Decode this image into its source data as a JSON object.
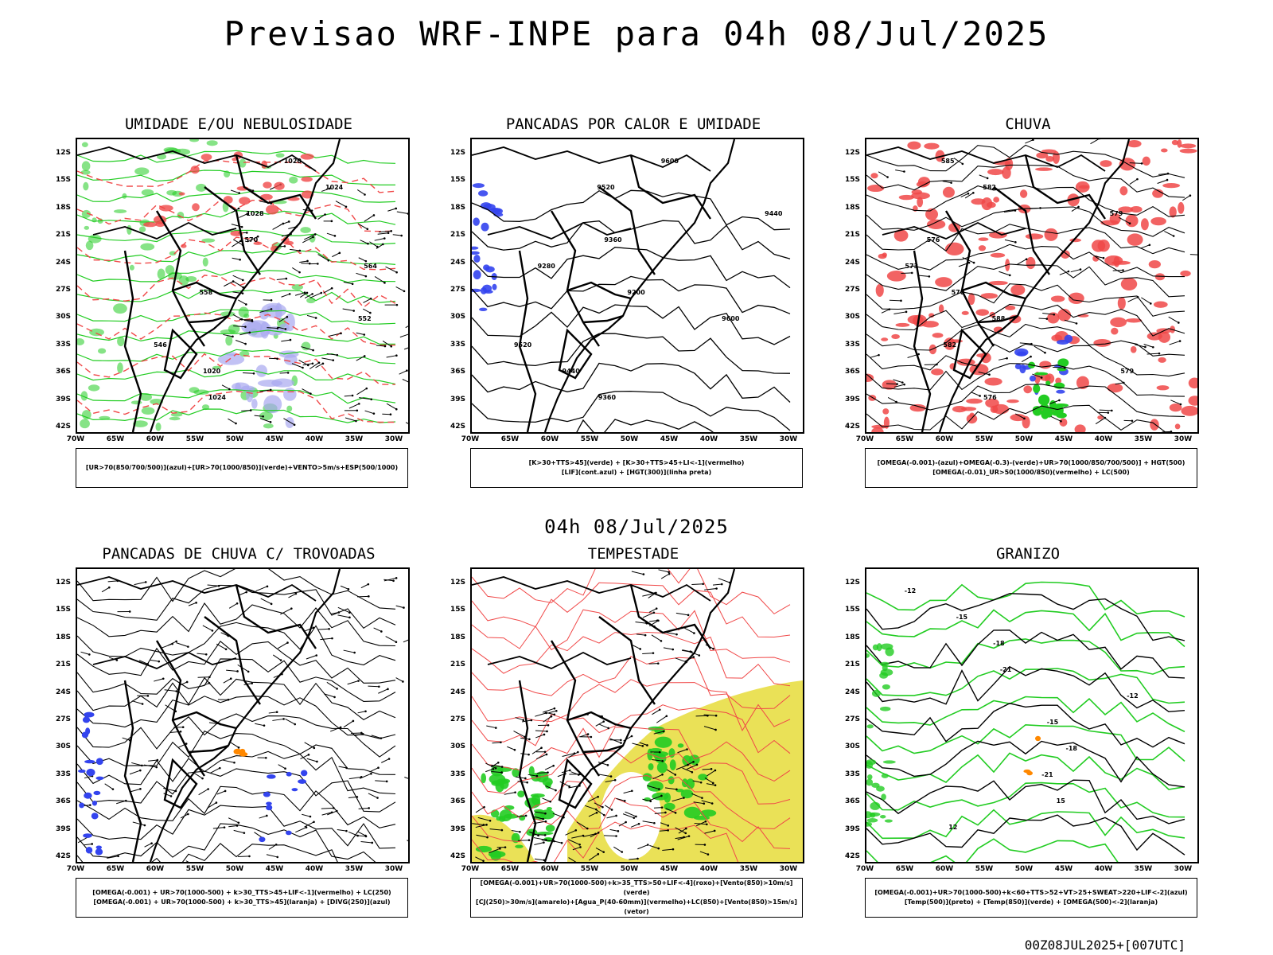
{
  "header": {
    "title": "Previsao WRF-INPE  para 04h 08/Jul/2025",
    "mid_title": "04h 08/Jul/2025",
    "footer": "00Z08JUL2025+[007UTC]"
  },
  "axes": {
    "lat_labels": [
      "12S",
      "15S",
      "18S",
      "21S",
      "24S",
      "27S",
      "30S",
      "33S",
      "36S",
      "39S",
      "42S"
    ],
    "lon_labels": [
      "70W",
      "65W",
      "60W",
      "55W",
      "50W",
      "45W",
      "40W",
      "35W",
      "30W"
    ]
  },
  "colors": {
    "red": "#f04848",
    "green": "#22cc22",
    "blue": "#3344ee",
    "lightblue": "#a8a8f0",
    "yellow": "#e6dc3a",
    "orange": "#ff8800",
    "black": "#000000"
  },
  "panels": [
    {
      "title": "UMIDADE E/OU NEBULOSIDADE",
      "legend_lines": [
        "[UR>70(850/700/500)](azul)+[UR>70(1000/850)](verde)+VENTO>5m/s+ESP(500/1000)"
      ],
      "contour_labels": [
        "1020",
        "1024",
        "1028",
        "570",
        "564",
        "558",
        "552",
        "546",
        "1020",
        "1024"
      ]
    },
    {
      "title": "PANCADAS POR CALOR E UMIDADE",
      "legend_lines": [
        "[K>30+TTS>45](verde) + [K>30+TTS>45+LI<-1](vermelho)",
        "[LIF](cont.azul) + [HGT(300)](linha preta)"
      ],
      "contour_labels": [
        "9600",
        "9520",
        "9440",
        "9360",
        "9280",
        "9200",
        "9600",
        "9520",
        "9440",
        "9360"
      ]
    },
    {
      "title": "CHUVA",
      "legend_lines": [
        "[OMEGA(-0.001)-(azul)+OMEGA(-0.3)-(verde)+UR>70(1000/850/700/500)] + HGT(500)",
        "[OMEGA(-0.01)_UR>50(1000/850)(vermelho) + LC(500)"
      ],
      "contour_labels": [
        "585",
        "582",
        "579",
        "576",
        "573",
        "570",
        "588",
        "582",
        "579",
        "576"
      ]
    },
    {
      "title": "PANCADAS DE CHUVA C/ TROVOADAS",
      "legend_lines": [
        "[OMEGA(-0.001) + UR>70(1000-500) + k>30_TTS>45+LIF<-1](vermelho) + LC(250)",
        "[OMEGA(-0.001) + UR>70(1000-500) + k>30_TTS>45](laranja) + [DIVG(250)](azul)"
      ],
      "contour_labels": []
    },
    {
      "title": "TEMPESTADE",
      "legend_lines": [
        "[OMEGA(-0.001)+UR>70(1000-500)+k>35_TTS>50+LIF<-4](roxo)+[Vento(850)>10m/s](verde)",
        "[CJ(250)>30m/s](amarelo)+[Agua_P(40-60mm)](vermelho)+LC(850)+[Vento(850)>15m/s](vetor)"
      ],
      "contour_labels": []
    },
    {
      "title": "GRANIZO",
      "legend_lines": [
        "[OMEGA(-0.001)+UR>70(1000-500)+k<60+TTS>52+VT>25+SWEAT>220+LIF<-2](azul)",
        "[Temp(500)](preto) + [Temp(850)](verde) + [OMEGA(500)<-2](laranja)"
      ],
      "contour_labels": [
        "-12",
        "-15",
        "-18",
        "-21",
        "-12",
        "-15",
        "-18",
        "-21",
        "15",
        "12"
      ]
    }
  ]
}
